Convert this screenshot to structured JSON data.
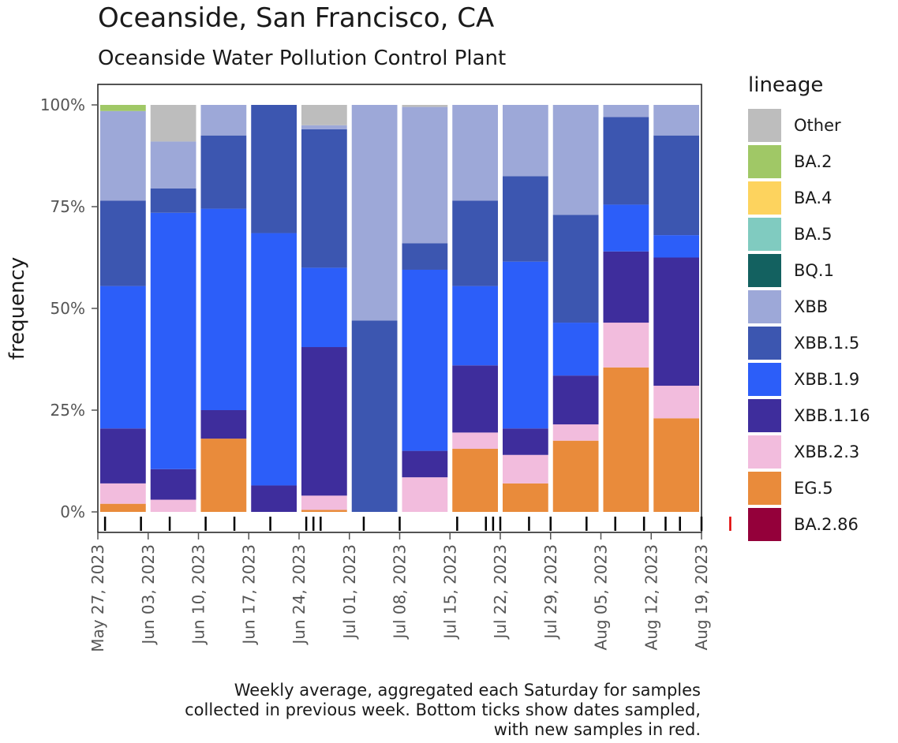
{
  "chart_data": {
    "type": "stacked-bar",
    "title": "Oceanside, San Francisco, CA",
    "subtitle": "Oceanside Water Pollution Control Plant",
    "ylabel": "frequency",
    "ylim": [
      0,
      100
    ],
    "y_ticks": [
      "0%",
      "25%",
      "50%",
      "75%",
      "100%"
    ],
    "x_ticks": [
      "May 27, 2023",
      "Jun 03, 2023",
      "Jun 10, 2023",
      "Jun 17, 2023",
      "Jun 24, 2023",
      "Jul 01, 2023",
      "Jul 08, 2023",
      "Jul 15, 2023",
      "Jul 22, 2023",
      "Jul 29, 2023",
      "Aug 05, 2023",
      "Aug 12, 2023",
      "Aug 19, 2023"
    ],
    "legend_title": "lineage",
    "legend_position": "right",
    "lineages": [
      {
        "name": "Other",
        "color": "#bdbdbd"
      },
      {
        "name": "BA.2",
        "color": "#a0c866"
      },
      {
        "name": "BA.4",
        "color": "#fdd35e"
      },
      {
        "name": "BA.5",
        "color": "#80cbc0"
      },
      {
        "name": "BQ.1",
        "color": "#136160"
      },
      {
        "name": "XBB",
        "color": "#9da8d8"
      },
      {
        "name": "XBB.1.5",
        "color": "#3c56b0"
      },
      {
        "name": "XBB.1.9",
        "color": "#2c5ef9"
      },
      {
        "name": "XBB.1.16",
        "color": "#3e2d9c"
      },
      {
        "name": "XBB.2.3",
        "color": "#f2bcdd"
      },
      {
        "name": "EG.5",
        "color": "#e98b3b"
      },
      {
        "name": "BA.2.86",
        "color": "#94003a"
      }
    ],
    "stack_order_bottom_to_top": [
      "BA.2.86",
      "EG.5",
      "XBB.2.3",
      "XBB.1.16",
      "XBB.1.9",
      "XBB.1.5",
      "XBB",
      "BQ.1",
      "BA.5",
      "BA.4",
      "BA.2",
      "Other"
    ],
    "weeks": [
      {
        "week": "May 27, 2023",
        "values": {
          "EG.5": 2,
          "XBB.2.3": 5,
          "XBB.1.16": 13.5,
          "XBB.1.9": 35,
          "XBB.1.5": 21,
          "XBB": 22,
          "BA.2": 1.5
        }
      },
      {
        "week": "Jun 03, 2023",
        "values": {
          "XBB.2.3": 3,
          "XBB.1.16": 7.5,
          "XBB.1.9": 63,
          "XBB.1.5": 6,
          "XBB": 11.5,
          "Other": 9
        }
      },
      {
        "week": "Jun 10, 2023",
        "values": {
          "EG.5": 18,
          "XBB.1.16": 7,
          "XBB.1.9": 49.5,
          "XBB.1.5": 18,
          "XBB": 7.5
        }
      },
      {
        "week": "Jun 17, 2023",
        "values": {
          "XBB.1.16": 6.5,
          "XBB.1.9": 62,
          "XBB.1.5": 31.5
        }
      },
      {
        "week": "Jun 24, 2023",
        "values": {
          "EG.5": 0.5,
          "XBB.2.3": 3.5,
          "XBB.1.16": 36.5,
          "XBB.1.9": 19.5,
          "XBB.1.5": 34,
          "XBB": 1,
          "Other": 5
        }
      },
      {
        "week": "Jul 01, 2023",
        "values": {
          "XBB.1.5": 47,
          "XBB": 53
        }
      },
      {
        "week": "Jul 08, 2023",
        "values": {
          "XBB.2.3": 8.5,
          "XBB.1.16": 6.5,
          "XBB.1.9": 44.5,
          "XBB.1.5": 6.5,
          "XBB": 33.5,
          "Other": 0.5
        }
      },
      {
        "week": "Jul 15, 2023",
        "values": {
          "EG.5": 15.5,
          "XBB.2.3": 4,
          "XBB.1.16": 16.5,
          "XBB.1.9": 19.5,
          "XBB.1.5": 21,
          "XBB": 23.5
        }
      },
      {
        "week": "Jul 22, 2023",
        "values": {
          "EG.5": 7,
          "XBB.2.3": 7,
          "XBB.1.16": 6.5,
          "XBB.1.9": 41,
          "XBB.1.5": 21,
          "XBB": 17.5
        }
      },
      {
        "week": "Jul 29, 2023",
        "values": {
          "EG.5": 17.5,
          "XBB.2.3": 4,
          "XBB.1.16": 12,
          "XBB.1.9": 13,
          "XBB.1.5": 26.5,
          "XBB": 27
        }
      },
      {
        "week": "Aug 05, 2023",
        "values": {
          "EG.5": 35.5,
          "XBB.2.3": 11,
          "XBB.1.16": 17.5,
          "XBB.1.9": 11.5,
          "XBB.1.5": 21.5,
          "XBB": 3
        }
      },
      {
        "week": "Aug 12, 2023",
        "values": {
          "EG.5": 23,
          "XBB.2.3": 8,
          "XBB.1.16": 31.5,
          "XBB.1.9": 5.5,
          "XBB.1.5": 24.5,
          "XBB": 7.5
        }
      }
    ],
    "sample_dates_days_since_May_27": [
      1,
      6,
      10,
      15,
      19,
      24,
      29,
      30,
      31,
      37,
      42,
      50,
      54,
      55,
      56,
      60,
      63,
      68,
      72,
      76,
      79,
      81,
      84
    ],
    "new_sample_dates_days_since_May_27": [
      88
    ],
    "caption_lines": [
      "Weekly average, aggregated each Saturday for samples",
      "collected in previous week. Bottom ticks show dates sampled,",
      "with new samples in red."
    ]
  }
}
